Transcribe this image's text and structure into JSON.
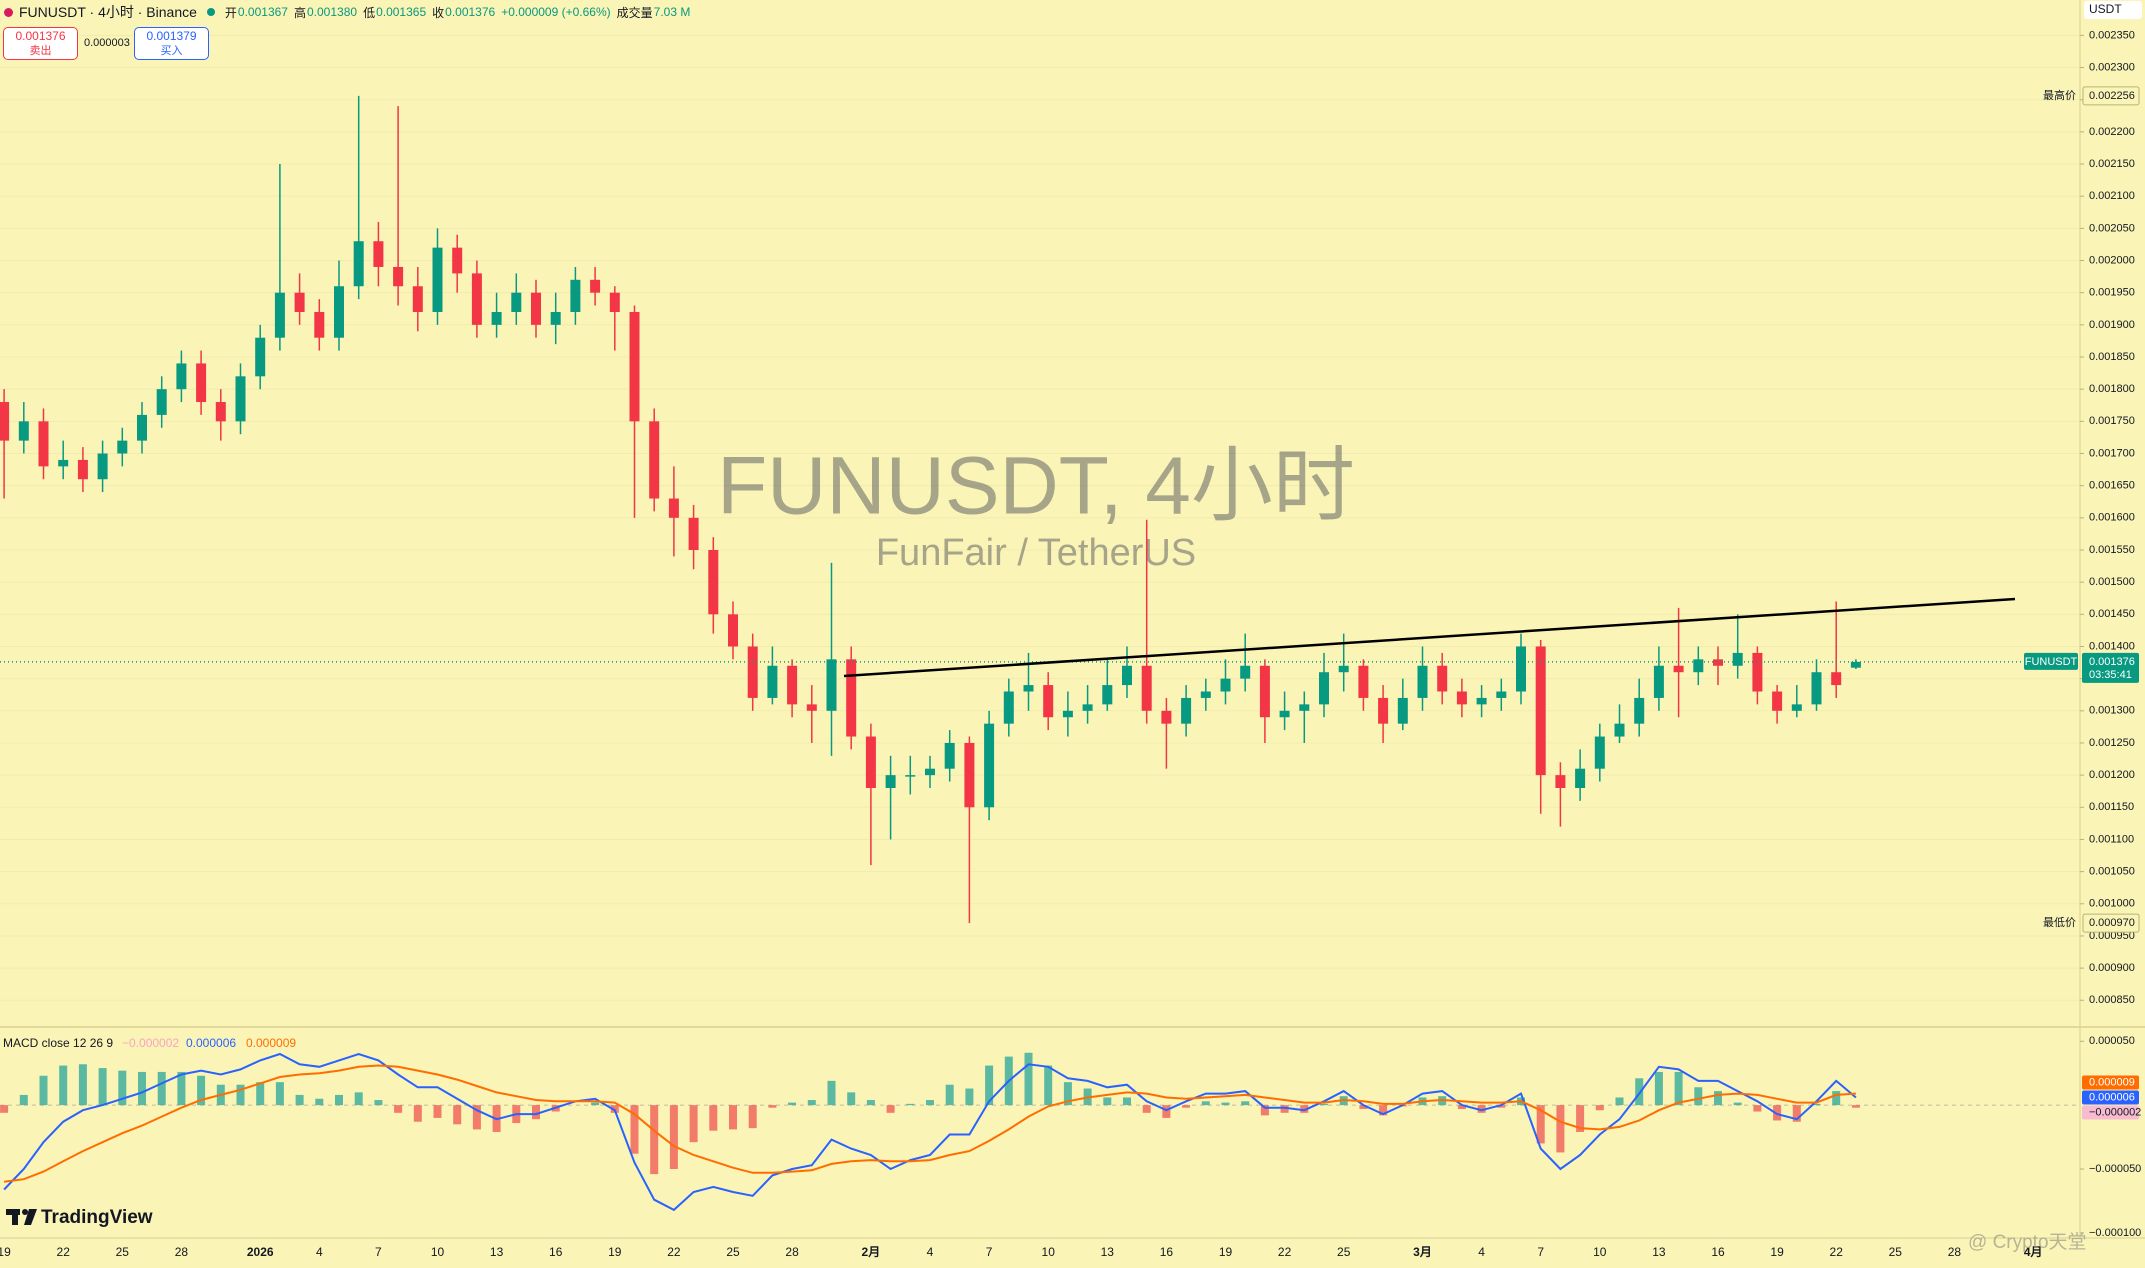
{
  "header": {
    "symbol_line": "FUNUSDT · 4小时 · Binance",
    "open_label": "开",
    "open": "0.001367",
    "high_label": "高",
    "high": "0.001380",
    "low_label": "低",
    "low": "0.001365",
    "close_label": "收",
    "close": "0.001376",
    "change": "+0.000009 (+0.66%)",
    "volume_label": "成交量",
    "volume": "7.03 M",
    "sell_price": "0.001376",
    "sell_label": "卖出",
    "spread": "0.000003",
    "buy_price": "0.001379",
    "buy_label": "买入",
    "currency": "USDT"
  },
  "watermark": {
    "title": "FUNUSDT, 4小时",
    "subtitle": "FunFair / TetherUS",
    "brand": "TradingView",
    "credit": "@ Crypto天堂"
  },
  "chart_data": {
    "type": "candlestick",
    "categories": [
      "19",
      null,
      null,
      "22",
      null,
      null,
      "25",
      null,
      null,
      "28",
      null,
      null,
      null,
      "2026",
      null,
      null,
      "4",
      null,
      null,
      "7",
      null,
      null,
      "10",
      null,
      null,
      "13",
      null,
      null,
      "16",
      null,
      null,
      "19",
      null,
      null,
      "22",
      null,
      null,
      "25",
      null,
      null,
      "28",
      null,
      null,
      null,
      "2月",
      null,
      null,
      "4",
      null,
      null,
      "7",
      null,
      null,
      "10",
      null,
      null,
      "13",
      null,
      null,
      "16",
      null,
      null,
      "19",
      null,
      null,
      "22",
      null,
      null,
      "25",
      null,
      null,
      null,
      "3月",
      null,
      null,
      "4",
      null,
      null,
      "7",
      null,
      null,
      "10",
      null,
      null,
      "13",
      null,
      null,
      "16",
      null,
      null,
      "19",
      null,
      null,
      "22",
      null,
      null,
      "25",
      null,
      null,
      "28",
      null,
      null,
      null,
      "4月",
      null
    ],
    "open": [
      0.00178,
      0.00172,
      0.00175,
      0.00168,
      0.00169,
      0.00166,
      0.0017,
      0.00172,
      0.00176,
      0.0018,
      0.00184,
      0.00178,
      0.00175,
      0.00182,
      0.00188,
      0.00195,
      0.00192,
      0.00188,
      0.00196,
      0.00203,
      0.00199,
      0.00196,
      0.00192,
      0.00202,
      0.00198,
      0.0019,
      0.00192,
      0.00195,
      0.0019,
      0.00192,
      0.00197,
      0.00195,
      0.00192,
      0.00175,
      0.00163,
      0.0016,
      0.00155,
      0.00145,
      0.0014,
      0.00132,
      0.00137,
      0.00131,
      0.0013,
      0.00138,
      0.00126,
      0.00118,
      0.0012,
      0.0012,
      0.00121,
      0.00125,
      0.00115,
      0.00128,
      0.00133,
      0.00134,
      0.00129,
      0.0013,
      0.00131,
      0.00134,
      0.00137,
      0.0013,
      0.00128,
      0.00132,
      0.00133,
      0.00135,
      0.00137,
      0.00129,
      0.0013,
      0.00131,
      0.00136,
      0.00137,
      0.00132,
      0.00128,
      0.00132,
      0.00137,
      0.00133,
      0.00131,
      0.00132,
      0.00133,
      0.0014,
      0.0012,
      0.00118,
      0.00121,
      0.00126,
      0.00128,
      0.00132,
      0.00137,
      0.00136,
      0.00138,
      0.00137,
      0.00139,
      0.00133,
      0.0013,
      0.00131,
      0.00136,
      0.001367,
      null,
      null,
      null,
      null,
      null,
      null,
      null,
      null,
      null,
      null
    ],
    "high": [
      0.0018,
      0.00178,
      0.00177,
      0.00172,
      0.00171,
      0.00172,
      0.00174,
      0.00178,
      0.00182,
      0.00186,
      0.00186,
      0.0018,
      0.00184,
      0.0019,
      0.00215,
      0.00198,
      0.00194,
      0.002,
      0.002256,
      0.00206,
      0.00224,
      0.00199,
      0.00205,
      0.00204,
      0.002,
      0.00195,
      0.00198,
      0.00197,
      0.00195,
      0.00199,
      0.00199,
      0.00196,
      0.00193,
      0.00177,
      0.00168,
      0.00162,
      0.00157,
      0.00147,
      0.00142,
      0.0014,
      0.00138,
      0.00134,
      0.00153,
      0.0014,
      0.00128,
      0.00123,
      0.00123,
      0.00123,
      0.00127,
      0.00126,
      0.0013,
      0.00135,
      0.00139,
      0.00136,
      0.00133,
      0.00134,
      0.00138,
      0.0014,
      0.001597,
      0.00132,
      0.00134,
      0.00135,
      0.00138,
      0.00142,
      0.00138,
      0.00133,
      0.00133,
      0.00139,
      0.00142,
      0.00138,
      0.00134,
      0.00135,
      0.0014,
      0.00139,
      0.00135,
      0.00134,
      0.00135,
      0.00142,
      0.00141,
      0.00122,
      0.00124,
      0.00128,
      0.00131,
      0.00135,
      0.0014,
      0.00146,
      0.0014,
      0.0014,
      0.00145,
      0.0014,
      0.00134,
      0.00134,
      0.00138,
      0.00147,
      0.00138,
      null,
      null,
      null,
      null,
      null,
      null,
      null,
      null,
      null,
      null
    ],
    "low": [
      0.00163,
      0.0017,
      0.00166,
      0.00166,
      0.00164,
      0.00164,
      0.00168,
      0.0017,
      0.00174,
      0.00178,
      0.00176,
      0.00172,
      0.00173,
      0.0018,
      0.00186,
      0.0019,
      0.00186,
      0.00186,
      0.00194,
      0.00196,
      0.00193,
      0.00189,
      0.0019,
      0.00195,
      0.00188,
      0.00188,
      0.0019,
      0.00188,
      0.00187,
      0.0019,
      0.00193,
      0.00186,
      0.0016,
      0.00161,
      0.00154,
      0.00152,
      0.00142,
      0.00138,
      0.0013,
      0.00131,
      0.00129,
      0.00125,
      0.00123,
      0.00124,
      0.00106,
      0.0011,
      0.00117,
      0.00118,
      0.00119,
      0.00097,
      0.00113,
      0.00126,
      0.0013,
      0.00127,
      0.00126,
      0.00128,
      0.0013,
      0.00132,
      0.00128,
      0.00121,
      0.00126,
      0.0013,
      0.00131,
      0.00133,
      0.00125,
      0.00127,
      0.00125,
      0.00129,
      0.00133,
      0.0013,
      0.00125,
      0.00127,
      0.0013,
      0.00131,
      0.00129,
      0.00129,
      0.0013,
      0.00131,
      0.00114,
      0.00112,
      0.00116,
      0.00119,
      0.00125,
      0.00126,
      0.0013,
      0.00129,
      0.00134,
      0.00134,
      0.00135,
      0.00131,
      0.00128,
      0.00129,
      0.0013,
      0.00132,
      0.001365,
      null,
      null,
      null,
      null,
      null,
      null,
      null,
      null,
      null,
      null
    ],
    "close": [
      0.00172,
      0.00175,
      0.00168,
      0.00169,
      0.00166,
      0.0017,
      0.00172,
      0.00176,
      0.0018,
      0.00184,
      0.00178,
      0.00175,
      0.00182,
      0.00188,
      0.00195,
      0.00192,
      0.00188,
      0.00196,
      0.00203,
      0.00199,
      0.00196,
      0.00192,
      0.00202,
      0.00198,
      0.0019,
      0.00192,
      0.00195,
      0.0019,
      0.00192,
      0.00197,
      0.00195,
      0.00192,
      0.00175,
      0.00163,
      0.0016,
      0.00155,
      0.00145,
      0.0014,
      0.00132,
      0.00137,
      0.00131,
      0.0013,
      0.00138,
      0.00126,
      0.00118,
      0.0012,
      0.0012,
      0.00121,
      0.00125,
      0.00115,
      0.00128,
      0.00133,
      0.00134,
      0.00129,
      0.0013,
      0.00131,
      0.00134,
      0.00137,
      0.0013,
      0.00128,
      0.00132,
      0.00133,
      0.00135,
      0.00137,
      0.00129,
      0.0013,
      0.00131,
      0.00136,
      0.00137,
      0.00132,
      0.00128,
      0.00132,
      0.00137,
      0.00133,
      0.00131,
      0.00132,
      0.00133,
      0.0014,
      0.0012,
      0.00118,
      0.00121,
      0.00126,
      0.00128,
      0.00132,
      0.00137,
      0.00136,
      0.00138,
      0.00137,
      0.00139,
      0.00133,
      0.0013,
      0.00131,
      0.00136,
      0.00134,
      0.001376,
      null,
      null,
      null,
      null,
      null,
      null,
      null,
      null,
      null,
      null
    ],
    "up_color": "#089981",
    "down_color": "#f23645",
    "ylim": [
      0.00081,
      0.002405
    ],
    "yticks": [
      {
        "value": 0.00085,
        "label": "0.000850"
      },
      {
        "value": 0.0009,
        "label": "0.000900"
      },
      {
        "value": 0.00095,
        "label": "0.000950"
      },
      {
        "value": 0.001,
        "label": "0.001000"
      },
      {
        "value": 0.00105,
        "label": "0.001050"
      },
      {
        "value": 0.0011,
        "label": "0.001100"
      },
      {
        "value": 0.00115,
        "label": "0.001150"
      },
      {
        "value": 0.0012,
        "label": "0.001200"
      },
      {
        "value": 0.00125,
        "label": "0.001250"
      },
      {
        "value": 0.0013,
        "label": "0.001300"
      },
      {
        "value": 0.00135,
        "label": "0.001350"
      },
      {
        "value": 0.0014,
        "label": "0.001400"
      },
      {
        "value": 0.00145,
        "label": "0.001450"
      },
      {
        "value": 0.0015,
        "label": "0.001500"
      },
      {
        "value": 0.00155,
        "label": "0.001550"
      },
      {
        "value": 0.0016,
        "label": "0.001600"
      },
      {
        "value": 0.00165,
        "label": "0.001650"
      },
      {
        "value": 0.0017,
        "label": "0.001700"
      },
      {
        "value": 0.00175,
        "label": "0.001750"
      },
      {
        "value": 0.0018,
        "label": "0.001800"
      },
      {
        "value": 0.00185,
        "label": "0.001850"
      },
      {
        "value": 0.0019,
        "label": "0.001900"
      },
      {
        "value": 0.00195,
        "label": "0.001950"
      },
      {
        "value": 0.002,
        "label": "0.002000"
      },
      {
        "value": 0.00205,
        "label": "0.002050"
      },
      {
        "value": 0.0021,
        "label": "0.002100"
      },
      {
        "value": 0.00215,
        "label": "0.002150"
      },
      {
        "value": 0.0022,
        "label": "0.002200"
      },
      {
        "value": 0.00225,
        "label": "0.002250"
      },
      {
        "value": 0.0023,
        "label": "0.002300"
      },
      {
        "value": 0.00235,
        "label": "0.002350"
      }
    ],
    "high_tag": {
      "label": "最高价",
      "value": 0.002256,
      "text": "0.002256"
    },
    "low_tag": {
      "label": "最低价",
      "value": 0.00097,
      "text": "0.000970"
    },
    "price_tag": {
      "symbol": "FUNUSDT",
      "value": 0.001376,
      "text": "0.001376",
      "countdown": "03:35:41"
    },
    "macd": {
      "type": "line",
      "title": "MACD close 12 26 9",
      "ylim": [
        -0.000104,
        5.96e-05
      ],
      "yticks": [
        {
          "value": 5e-05,
          "label": "0.000050"
        },
        {
          "value": -5e-05,
          "label": "−0.000050"
        },
        {
          "value": -0.0001,
          "label": "−0.000100"
        }
      ],
      "histogram": {
        "pos_color": "#26a69a",
        "neg_color": "#ef5350",
        "last_label": "−0.000002",
        "tag_color": "#f8bbd0",
        "values": [
          -6e-06,
          8e-06,
          2.3e-05,
          3.1e-05,
          3.2e-05,
          2.9e-05,
          2.7e-05,
          2.6e-05,
          2.6e-05,
          2.6e-05,
          2.3e-05,
          1.6e-05,
          1.6e-05,
          1.8e-05,
          1.8e-05,
          8e-06,
          5e-06,
          8e-06,
          1e-05,
          4e-06,
          -6e-06,
          -1.3e-05,
          -1e-05,
          -1.5e-05,
          -1.9e-05,
          -2.1e-05,
          -1.4e-05,
          -1.1e-05,
          -5e-06,
          0,
          2e-06,
          -6e-06,
          -3.8e-05,
          -5.4e-05,
          -5e-05,
          -2.9e-05,
          -2e-05,
          -1.9e-05,
          -1.8e-05,
          -2e-06,
          2e-06,
          4e-06,
          1.9e-05,
          1e-05,
          4e-06,
          -6e-06,
          1e-06,
          4e-06,
          1.6e-05,
          1.3e-05,
          3.1e-05,
          3.8e-05,
          4.1e-05,
          3.1e-05,
          1.8e-05,
          1.3e-05,
          6e-06,
          6e-06,
          -6e-06,
          -1e-05,
          -2e-06,
          3e-06,
          2e-06,
          3e-06,
          -8e-06,
          -6e-06,
          -6e-06,
          1e-06,
          7e-06,
          -3e-06,
          -8e-06,
          -1e-06,
          6e-06,
          7e-06,
          -3e-06,
          -6e-06,
          -2e-06,
          6e-06,
          -3e-05,
          -3.7e-05,
          -2.1e-05,
          -4e-06,
          6e-06,
          2.1e-05,
          2.6e-05,
          2.6e-05,
          1.4e-05,
          1.1e-05,
          2e-06,
          -5e-06,
          -1.2e-05,
          -1.3e-05,
          1e-06,
          1.1e-05,
          -2e-06,
          null,
          null,
          null,
          null,
          null,
          null,
          null,
          null,
          null,
          null
        ]
      },
      "series": [
        {
          "color": "#2962ff",
          "last_label": "0.000006",
          "values": [
            -6.6e-05,
            -5e-05,
            -2.9e-05,
            -1.3e-05,
            -4e-06,
            0,
            5e-06,
            1e-05,
            1.7e-05,
            2.4e-05,
            2.7e-05,
            2.4e-05,
            2.8e-05,
            3.5e-05,
            4e-05,
            3.2e-05,
            3e-05,
            3.5e-05,
            4e-05,
            3.5e-05,
            2.4e-05,
            1.4e-05,
            1.4e-05,
            5e-06,
            -4e-06,
            -1.1e-05,
            -7e-06,
            -7e-06,
            -2e-06,
            3e-06,
            5e-06,
            -4e-06,
            -4.5e-05,
            -7.4e-05,
            -8.2e-05,
            -6.8e-05,
            -6.4e-05,
            -6.8e-05,
            -7.1e-05,
            -5.5e-05,
            -5e-05,
            -4.7e-05,
            -2.7e-05,
            -3.4e-05,
            -3.9e-05,
            -5e-05,
            -4.3e-05,
            -3.9e-05,
            -2.3e-05,
            -2.3e-05,
            3e-06,
            1.9e-05,
            3.2e-05,
            3e-05,
            2.1e-05,
            1.9e-05,
            1.4e-05,
            1.6e-05,
            3e-06,
            -4e-06,
            3e-06,
            9e-06,
            9e-06,
            1.1e-05,
            -2e-06,
            -2e-06,
            -4e-06,
            3e-06,
            1.1e-05,
            0,
            -7e-06,
            0,
            9e-06,
            1.1e-05,
            0,
            -4e-06,
            0,
            9e-06,
            -3.4e-05,
            -5e-05,
            -3.9e-05,
            -2.3e-05,
            -1.1e-05,
            9e-06,
            3e-05,
            2.8e-05,
            1.9e-05,
            1.9e-05,
            1.1e-05,
            3e-06,
            -7e-06,
            -1.1e-05,
            3e-06,
            1.9e-05,
            6e-06,
            null,
            null,
            null,
            null,
            null,
            null,
            null,
            null,
            null,
            null
          ]
        },
        {
          "color": "#ff6d00",
          "last_label": "0.000009",
          "values": [
            -6e-05,
            -5.8e-05,
            -5.2e-05,
            -4.4e-05,
            -3.6e-05,
            -2.9e-05,
            -2.2e-05,
            -1.6e-05,
            -9e-06,
            -2e-06,
            4e-06,
            8e-06,
            1.2e-05,
            1.7e-05,
            2.2e-05,
            2.4e-05,
            2.5e-05,
            2.7e-05,
            3e-05,
            3.1e-05,
            3e-05,
            2.7e-05,
            2.4e-05,
            2e-05,
            1.5e-05,
            1e-05,
            7e-06,
            4e-06,
            3e-06,
            3e-06,
            3e-06,
            2e-06,
            -7e-06,
            -2e-05,
            -3.2e-05,
            -3.9e-05,
            -4.4e-05,
            -4.9e-05,
            -5.3e-05,
            -5.3e-05,
            -5.2e-05,
            -5.1e-05,
            -4.6e-05,
            -4.4e-05,
            -4.3e-05,
            -4.4e-05,
            -4.4e-05,
            -4.3e-05,
            -3.9e-05,
            -3.6e-05,
            -2.8e-05,
            -1.9e-05,
            -9e-06,
            -1e-06,
            3e-06,
            6e-06,
            8e-06,
            1e-05,
            9e-06,
            6e-06,
            5e-06,
            6e-06,
            7e-06,
            8e-06,
            6e-06,
            4e-06,
            2e-06,
            2e-06,
            4e-06,
            3e-06,
            1e-06,
            1e-06,
            3e-06,
            4e-06,
            3e-06,
            2e-06,
            2e-06,
            3e-06,
            -4e-06,
            -1.3e-05,
            -1.8e-05,
            -1.9e-05,
            -1.7e-05,
            -1.2e-05,
            -4e-06,
            2e-06,
            5e-06,
            8e-06,
            9e-06,
            8e-06,
            5e-06,
            2e-06,
            2e-06,
            8e-06,
            9e-06,
            null,
            null,
            null,
            null,
            null,
            null,
            null,
            null,
            null,
            null
          ]
        }
      ]
    }
  }
}
